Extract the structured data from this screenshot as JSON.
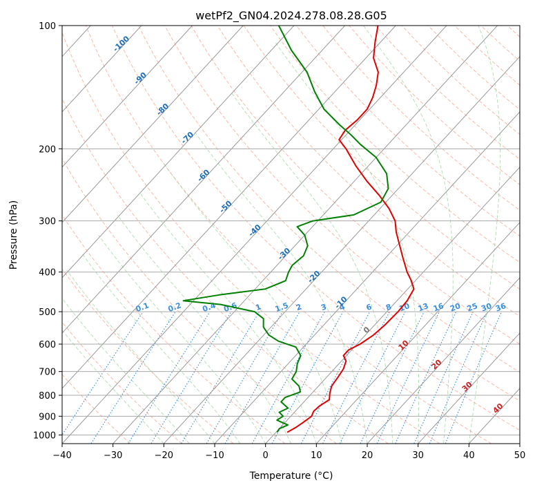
{
  "chart_data": {
    "type": "line",
    "subtype": "skew-t log-p diagram",
    "title": "wetPf2_GN04.2024.278.08.28.G05",
    "xlabel": "Temperature (°C)",
    "ylabel": "Pressure (hPa)",
    "xlim": [
      -40,
      50
    ],
    "ylim": [
      1050,
      100
    ],
    "y_scale": "log",
    "grid": true,
    "x_ticks": [
      -40,
      -30,
      -20,
      -10,
      0,
      10,
      20,
      30,
      40,
      50
    ],
    "x_tick_labels": [
      "−40",
      "−30",
      "−20",
      "−10",
      "0",
      "10",
      "20",
      "30",
      "40",
      "50"
    ],
    "y_ticks": [
      1000,
      900,
      800,
      700,
      600,
      500,
      400,
      300,
      200,
      100
    ],
    "y_tick_labels": [
      "1000",
      "900",
      "800",
      "700",
      "600",
      "500",
      "400",
      "300",
      "200",
      "100"
    ],
    "background_lines": {
      "isotherms": {
        "color": "#999999",
        "spacing_c": 10
      },
      "dry_adiabats": {
        "color": "#f5a08a",
        "style": "dashed"
      },
      "moist_adiabats": {
        "color": "#9fd49f",
        "style": "dashed"
      },
      "mixing_ratio": {
        "color": "#3a8fdc",
        "style": "dotted"
      }
    },
    "mixing_ratio_labels": [
      "0.1",
      "0.2",
      "0.4",
      "0.6",
      "1",
      "1.5",
      "2",
      "3",
      "4",
      "6",
      "8",
      "10",
      "13",
      "16",
      "20",
      "25",
      "30",
      "36"
    ],
    "mixing_ratio_values": [
      0.1,
      0.2,
      0.4,
      0.6,
      1,
      1.5,
      2,
      3,
      4,
      6,
      8,
      10,
      13,
      16,
      20,
      25,
      30,
      36
    ],
    "isotherm_labels_upper": [
      "-100",
      "-90",
      "-80",
      "-70",
      "-60",
      "-50",
      "-40",
      "-30",
      "-20",
      "-10"
    ],
    "isotherm_labels_lower": [
      "0",
      "10",
      "20",
      "30",
      "40"
    ],
    "series": [
      {
        "name": "",
        "color": "#e00000",
        "role": "temperature",
        "points": [
          {
            "p": 985,
            "t": 2.2
          },
          {
            "p": 960,
            "t": 3.0
          },
          {
            "p": 930,
            "t": 3.6
          },
          {
            "p": 900,
            "t": 4.1
          },
          {
            "p": 875,
            "t": 3.6
          },
          {
            "p": 850,
            "t": 3.8
          },
          {
            "p": 820,
            "t": 4.6
          },
          {
            "p": 790,
            "t": 3.5
          },
          {
            "p": 760,
            "t": 2.6
          },
          {
            "p": 720,
            "t": 2.2
          },
          {
            "p": 690,
            "t": 1.8
          },
          {
            "p": 660,
            "t": 0.9
          },
          {
            "p": 640,
            "t": -0.6
          },
          {
            "p": 620,
            "t": -0.6
          },
          {
            "p": 600,
            "t": 0.6
          },
          {
            "p": 570,
            "t": 1.6
          },
          {
            "p": 540,
            "t": 2.0
          },
          {
            "p": 500,
            "t": 2.2
          },
          {
            "p": 470,
            "t": 2.0
          },
          {
            "p": 440,
            "t": 1.2
          },
          {
            "p": 420,
            "t": -0.8
          },
          {
            "p": 400,
            "t": -3.2
          },
          {
            "p": 370,
            "t": -6.5
          },
          {
            "p": 340,
            "t": -10.0
          },
          {
            "p": 320,
            "t": -12.5
          },
          {
            "p": 300,
            "t": -14.8
          },
          {
            "p": 280,
            "t": -18.2
          },
          {
            "p": 260,
            "t": -22.5
          },
          {
            "p": 240,
            "t": -27.5
          },
          {
            "p": 220,
            "t": -32.5
          },
          {
            "p": 200,
            "t": -37.5
          },
          {
            "p": 190,
            "t": -40.5
          },
          {
            "p": 180,
            "t": -41.0
          },
          {
            "p": 170,
            "t": -40.5
          },
          {
            "p": 160,
            "t": -40.5
          },
          {
            "p": 150,
            "t": -41.5
          },
          {
            "p": 140,
            "t": -43.0
          },
          {
            "p": 130,
            "t": -45.0
          },
          {
            "p": 120,
            "t": -48.5
          },
          {
            "p": 110,
            "t": -51.0
          },
          {
            "p": 100,
            "t": -53.5
          }
        ]
      },
      {
        "name": "",
        "color": "#008000",
        "role": "dewpoint",
        "points": [
          {
            "p": 985,
            "t": 0.2
          },
          {
            "p": 965,
            "t": 0.0
          },
          {
            "p": 945,
            "t": 1.0
          },
          {
            "p": 920,
            "t": -2.0
          },
          {
            "p": 900,
            "t": -1.5
          },
          {
            "p": 880,
            "t": -3.0
          },
          {
            "p": 860,
            "t": -2.0
          },
          {
            "p": 830,
            "t": -4.5
          },
          {
            "p": 810,
            "t": -4.5
          },
          {
            "p": 785,
            "t": -2.5
          },
          {
            "p": 760,
            "t": -3.8
          },
          {
            "p": 730,
            "t": -6.5
          },
          {
            "p": 700,
            "t": -7.0
          },
          {
            "p": 670,
            "t": -8.2
          },
          {
            "p": 640,
            "t": -9.0
          },
          {
            "p": 610,
            "t": -11.5
          },
          {
            "p": 590,
            "t": -16.0
          },
          {
            "p": 570,
            "t": -19.0
          },
          {
            "p": 545,
            "t": -21.5
          },
          {
            "p": 520,
            "t": -23.0
          },
          {
            "p": 500,
            "t": -26.0
          },
          {
            "p": 480,
            "t": -34.0
          },
          {
            "p": 470,
            "t": -42.0
          },
          {
            "p": 455,
            "t": -36.0
          },
          {
            "p": 440,
            "t": -28.0
          },
          {
            "p": 420,
            "t": -25.5
          },
          {
            "p": 400,
            "t": -26.5
          },
          {
            "p": 385,
            "t": -27.0
          },
          {
            "p": 365,
            "t": -26.5
          },
          {
            "p": 345,
            "t": -27.5
          },
          {
            "p": 325,
            "t": -30.0
          },
          {
            "p": 310,
            "t": -33.0
          },
          {
            "p": 300,
            "t": -31.0
          },
          {
            "p": 290,
            "t": -24.0
          },
          {
            "p": 270,
            "t": -21.0
          },
          {
            "p": 250,
            "t": -22.0
          },
          {
            "p": 230,
            "t": -25.0
          },
          {
            "p": 210,
            "t": -30.0
          },
          {
            "p": 195,
            "t": -35.5
          },
          {
            "p": 185,
            "t": -39.0
          },
          {
            "p": 175,
            "t": -43.0
          },
          {
            "p": 160,
            "t": -49.0
          },
          {
            "p": 145,
            "t": -54.0
          },
          {
            "p": 130,
            "t": -59.0
          },
          {
            "p": 115,
            "t": -66.0
          },
          {
            "p": 100,
            "t": -73.0
          }
        ]
      }
    ]
  }
}
